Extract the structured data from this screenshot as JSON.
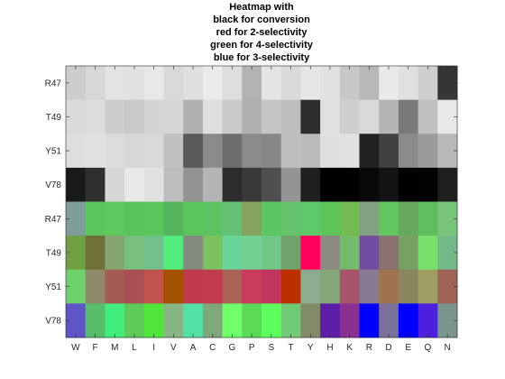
{
  "chart_data": {
    "type": "heatmap",
    "title": [
      "Heatmap with",
      "black for conversion",
      "red for 2-selectivity",
      "green for 4-selectivity",
      "blue for 3-selectivity"
    ],
    "x_tick_labels": [
      "W",
      "F",
      "M",
      "L",
      "I",
      "V",
      "A",
      "C",
      "G",
      "P",
      "S",
      "T",
      "Y",
      "H",
      "K",
      "R",
      "D",
      "E",
      "Q",
      "N"
    ],
    "y_tick_labels": [
      "R47",
      "T49",
      "Y51",
      "V78",
      "R47",
      "T49",
      "Y51",
      "V78"
    ],
    "cell_colors": [
      [
        "#cdcdcd",
        "#d7d7d7",
        "#e3e3e3",
        "#e2e2e2",
        "#e8e8e8",
        "#d9d9d9",
        "#dfdfdf",
        "#ebebeb",
        "#dedede",
        "#b3b3b3",
        "#e4e4e4",
        "#dadada",
        "#e6e6e6",
        "#e1e1e1",
        "#c8c8c8",
        "#b8b8b8",
        "#e9e9e9",
        "#e0e0e0",
        "#cfcfcf",
        "#353535"
      ],
      [
        "#dadada",
        "#dddddd",
        "#cdcdcd",
        "#c9c9c9",
        "#d4d4d4",
        "#d6d6d6",
        "#b0b0b0",
        "#dedede",
        "#cacaca",
        "#b0b0b0",
        "#c5c5c5",
        "#bdbdbd",
        "#2e2e2e",
        "#e0e0e0",
        "#cfcfcf",
        "#d9d9d9",
        "#b5b5b5",
        "#7a7a7a",
        "#c0c0c0",
        "#e8e8e8"
      ],
      [
        "#dedede",
        "#e1e1e1",
        "#dcdcdc",
        "#d7d7d7",
        "#d9d9d9",
        "#c1c1c1",
        "#595959",
        "#8b8b8b",
        "#6c6c6c",
        "#8b8b8b",
        "#878787",
        "#bebebe",
        "#bcbcbc",
        "#dfdfdf",
        "#e2e2e2",
        "#222222",
        "#414141",
        "#8b8b8b",
        "#9b9b9b",
        "#b8b8b8"
      ],
      [
        "#1a1a1a",
        "#2f2f2f",
        "#d6d6d6",
        "#e8e8e8",
        "#e1e1e1",
        "#bdbdbd",
        "#939393",
        "#b5b5b5",
        "#2c2c2c",
        "#393939",
        "#4f4f4f",
        "#949494",
        "#1f1f1f",
        "#000000",
        "#000000",
        "#0a0a0a",
        "#131313",
        "#000000",
        "#020202",
        "#1e1e1e"
      ],
      [
        "#7e9d99",
        "#5cc65c",
        "#5dc95d",
        "#59c459",
        "#5ac65c",
        "#55b55d",
        "#5ac65d",
        "#5dc261",
        "#64c074",
        "#86a35f",
        "#5cc662",
        "#64c36b",
        "#5dc96a",
        "#5fc45a",
        "#71bb52",
        "#82a283",
        "#61c660",
        "#66a85c",
        "#5fbd5e",
        "#77c47b"
      ],
      [
        "#6fa043",
        "#6e7038",
        "#85a472",
        "#79c080",
        "#74c08c",
        "#52ed7e",
        "#858a7e",
        "#79c35f",
        "#69d497",
        "#73d293",
        "#72c686",
        "#71a26d",
        "#ff005b",
        "#8b8982",
        "#73bc69",
        "#734ea0",
        "#8b7170",
        "#7a9f63",
        "#76e06b",
        "#73b889"
      ],
      [
        "#6ed16b",
        "#8f896a",
        "#a35b55",
        "#a85055",
        "#c0544c",
        "#a35000",
        "#bf3a4f",
        "#c13b4f",
        "#aa6257",
        "#c93b5d",
        "#c0355e",
        "#bc3000",
        "#8bac8e",
        "#82a676",
        "#a8546b",
        "#877a93",
        "#a0724f",
        "#8b8560",
        "#a09e63",
        "#9c6355"
      ],
      [
        "#6055c6",
        "#58bd6a",
        "#41ee7c",
        "#5dca5a",
        "#4fe63b",
        "#88b586",
        "#52e0a7",
        "#7ea77a",
        "#6eff6b",
        "#5bd957",
        "#5cff5b",
        "#71ca76",
        "#828a68",
        "#5e1eaa",
        "#8a3090",
        "#0000fe",
        "#7a7099",
        "#0000fd",
        "#4c20de",
        "#79958c"
      ]
    ]
  }
}
